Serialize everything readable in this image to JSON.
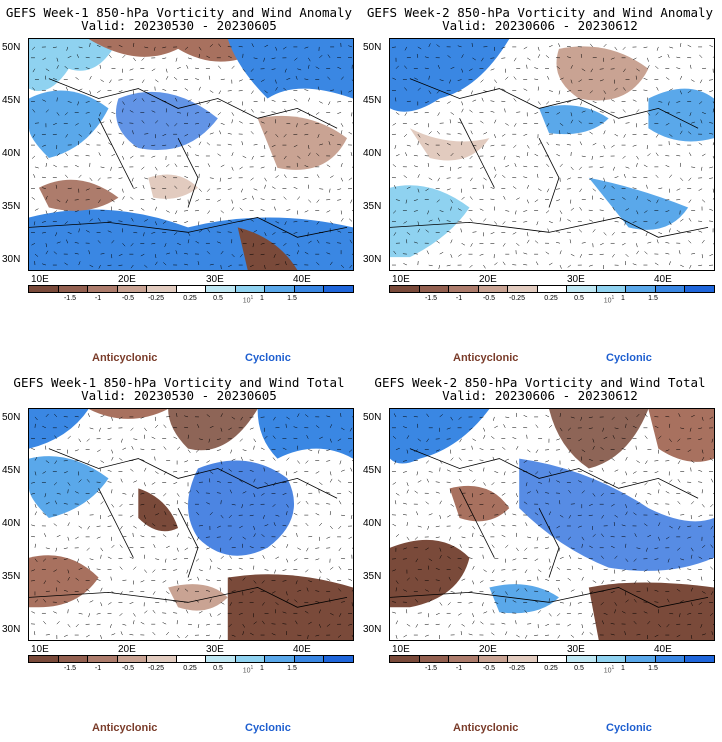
{
  "panels": [
    {
      "title": "GEFS Week-1 850-hPa Vorticity and Wind Anomaly",
      "valid": "Valid: 20230530 - 20230605"
    },
    {
      "title": "GEFS Week-2 850-hPa Vorticity and Wind Anomaly",
      "valid": "Valid: 20230606 - 20230612"
    },
    {
      "title": "GEFS Week-1 850-hPa Vorticity and Wind Total",
      "valid": "Valid: 20230530 - 20230605"
    },
    {
      "title": "GEFS Week-2 850-hPa Vorticity and Wind Total",
      "valid": "Valid: 20230606 - 20230612"
    }
  ],
  "lat_labels": [
    "50N",
    "45N",
    "40N",
    "35N",
    "30N"
  ],
  "lon_labels": [
    "10E",
    "20E",
    "30E",
    "40E"
  ],
  "colorbar": {
    "labels": [
      "-1.5",
      "-1",
      "-0.5",
      "-0.25",
      "0.25",
      "0.5",
      "1",
      "1.5"
    ],
    "scale_note": "10",
    "scale_exp": "1",
    "colors": [
      "#7a4a3a",
      "#936050",
      "#ad7c6c",
      "#c9a393",
      "#e2cbbf",
      "#ffffff",
      "#bfe8f4",
      "#8fd2f0",
      "#5aa8ea",
      "#3a87e3",
      "#1f66db"
    ]
  },
  "legend": {
    "anticyclonic": "Anticyclonic",
    "cyclonic": "Cyclonic"
  }
}
